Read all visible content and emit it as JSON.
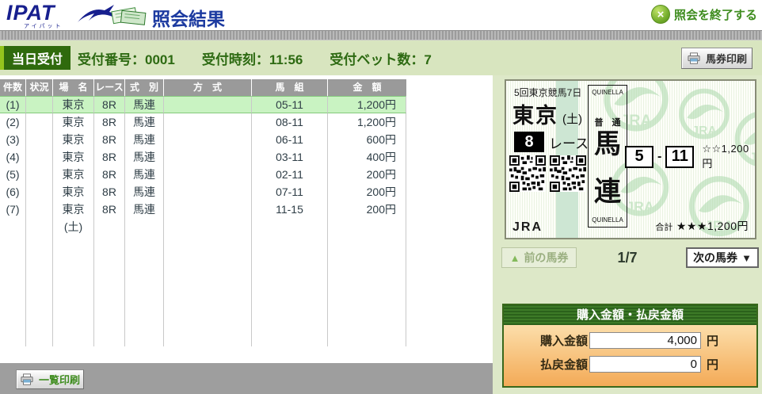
{
  "colors": {
    "brand_blue": "#1c3aa0",
    "link_green": "#3e8c1e",
    "bar_green": "#d8e5bf",
    "badge_green": "#2f6a0d",
    "table_header_gray": "#9a9a9a",
    "highlight_green": "#c9f3c2",
    "panel_green": "#dde8c8",
    "summary_header_green": "#2b611b",
    "summary_body_orange": "#f6b96e"
  },
  "header": {
    "logo_text": "IPAT",
    "logo_sub": "アイパット",
    "page_title": "照会結果",
    "close_button": "照会を終了する",
    "close_icon": "×"
  },
  "info_bar": {
    "badge": "当日受付",
    "items": [
      "受付番号：0001",
      "受付時刻：11:56",
      "受付ベット数：7"
    ],
    "print_button": "馬券印刷"
  },
  "table": {
    "headers": [
      "件数",
      "状況",
      "場　名",
      "レース",
      "式　別",
      "方　式",
      "馬　組",
      "金　額"
    ],
    "rows": [
      {
        "no": "(1)",
        "status": "",
        "venue": "東京(土)",
        "race": "8R",
        "type": "馬連",
        "method": "",
        "combo": "05-11",
        "amount": "1,200円"
      },
      {
        "no": "(2)",
        "status": "",
        "venue": "東京(土)",
        "race": "8R",
        "type": "馬連",
        "method": "",
        "combo": "08-11",
        "amount": "1,200円"
      },
      {
        "no": "(3)",
        "status": "",
        "venue": "東京(土)",
        "race": "8R",
        "type": "馬連",
        "method": "",
        "combo": "06-11",
        "amount": "600円"
      },
      {
        "no": "(4)",
        "status": "",
        "venue": "東京(土)",
        "race": "8R",
        "type": "馬連",
        "method": "",
        "combo": "03-11",
        "amount": "400円"
      },
      {
        "no": "(5)",
        "status": "",
        "venue": "東京(土)",
        "race": "8R",
        "type": "馬連",
        "method": "",
        "combo": "02-11",
        "amount": "200円"
      },
      {
        "no": "(6)",
        "status": "",
        "venue": "東京(土)",
        "race": "8R",
        "type": "馬連",
        "method": "",
        "combo": "07-11",
        "amount": "200円"
      },
      {
        "no": "(7)",
        "status": "",
        "venue": "東京(土)",
        "race": "8R",
        "type": "馬連",
        "method": "",
        "combo": "11-15",
        "amount": "200円"
      }
    ]
  },
  "list_print_button": "一覧印刷",
  "ticket": {
    "meet": "5回東京競馬7日",
    "venue": "東京",
    "day": "(土)",
    "race_number": "8",
    "race_label": "レース",
    "bet_type_top": "QUINELLA",
    "bet_type_sub": "普　通",
    "bet_type_main_1": "馬",
    "bet_type_main_2": "連",
    "bet_type_bottom": "QUINELLA",
    "horse_1": "5",
    "separator": "-",
    "horse_2": "11",
    "amount": "☆☆1,200円",
    "issuer": "JRA",
    "total_label": "合計",
    "total_value": "★★★1,200円"
  },
  "ticket_nav": {
    "prev_label": "前の馬券",
    "prev_arrow": "▲",
    "position": "1/7",
    "next_label": "次の馬券",
    "next_arrow": "▼"
  },
  "summary": {
    "title": "購入金額・払戻金額",
    "rows": [
      {
        "label": "購入金額",
        "value": "4,000",
        "unit": "円"
      },
      {
        "label": "払戻金額",
        "value": "0",
        "unit": "円"
      }
    ]
  }
}
